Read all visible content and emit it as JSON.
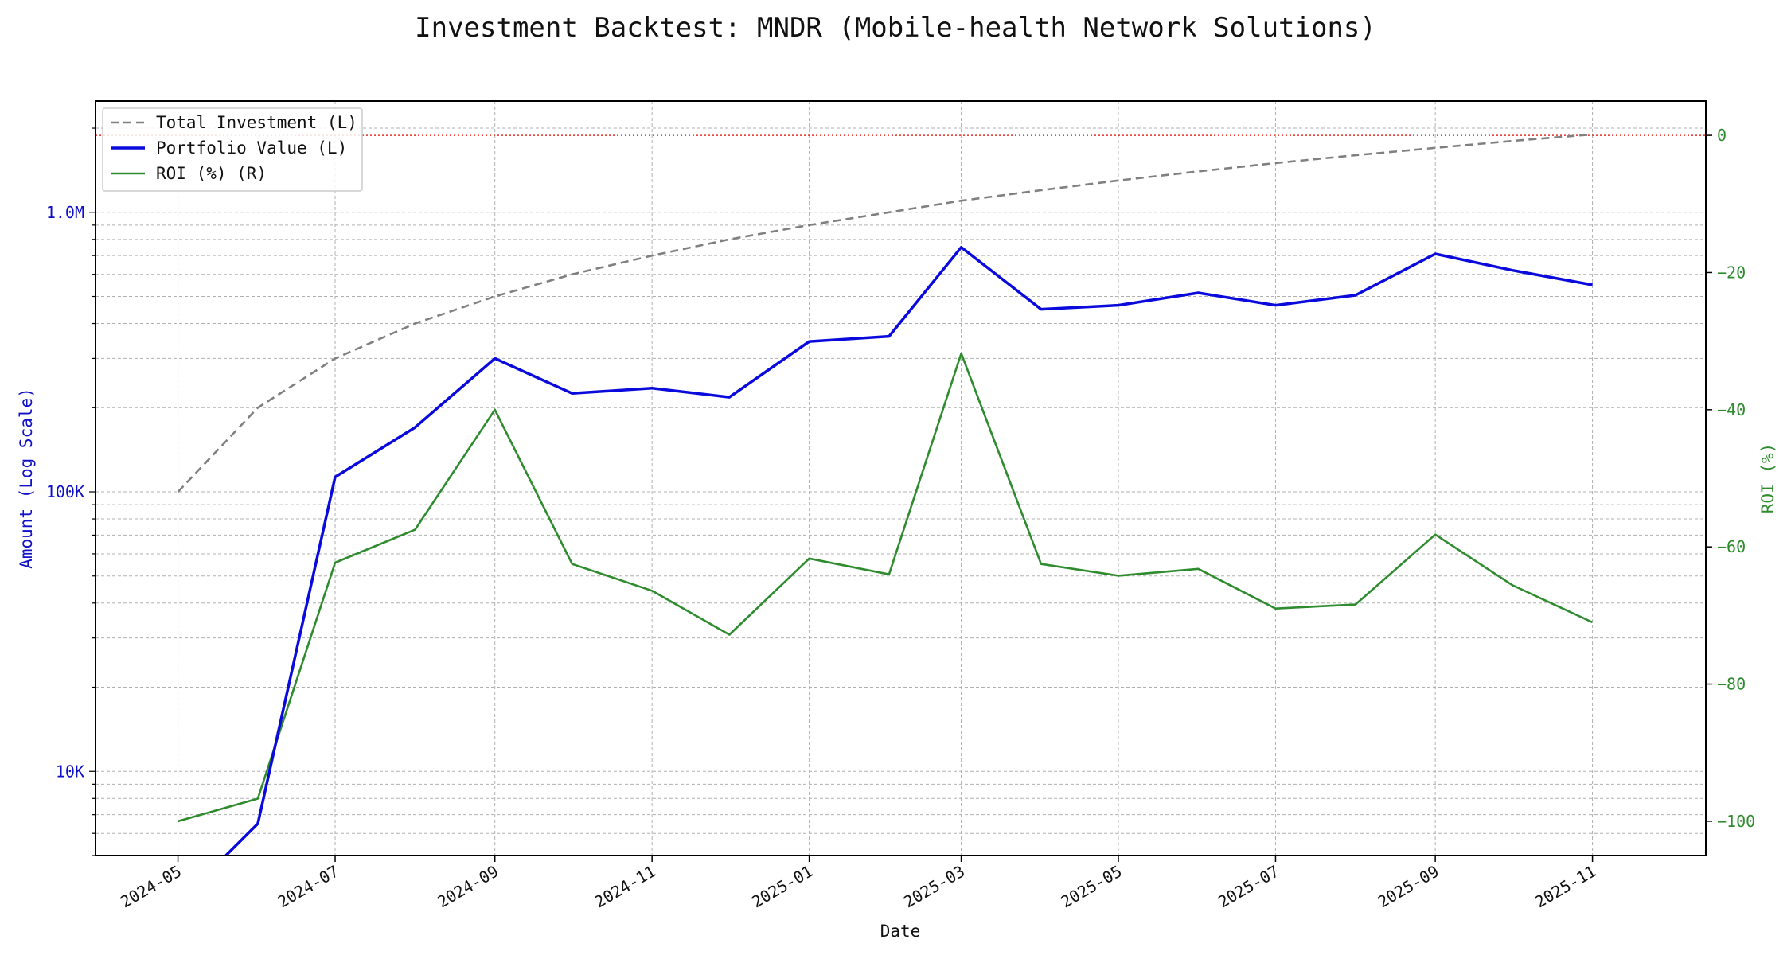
{
  "chart_data": {
    "type": "line",
    "title": "Investment Backtest: MNDR (Mobile-health Network Solutions)",
    "xlabel": "Date",
    "ylabel_left": "Amount (Log Scale)",
    "ylabel_right": "ROI (%)",
    "left_scale": "log",
    "ylim_left": [
      5000,
      2500000
    ],
    "ylim_right": [
      -105,
      5
    ],
    "xlim": [
      "2024-03-30",
      "2025-12-15"
    ],
    "grid": true,
    "legend_position": "top-left",
    "x_tick_labels": [
      "2024-05",
      "2024-07",
      "2024-09",
      "2024-11",
      "2025-01",
      "2025-03",
      "2025-05",
      "2025-07",
      "2025-09",
      "2025-11"
    ],
    "x_tick_dates": [
      "2024-05-01",
      "2024-07-01",
      "2024-09-01",
      "2024-11-01",
      "2025-01-01",
      "2025-03-01",
      "2025-05-01",
      "2025-07-01",
      "2025-09-01",
      "2025-11-01"
    ],
    "left_ticks": [
      {
        "value": 10000,
        "label": "10K"
      },
      {
        "value": 100000,
        "label": "100K"
      },
      {
        "value": 1000000,
        "label": "1.0M"
      }
    ],
    "right_ticks": [
      {
        "value": 0,
        "label": "0"
      },
      {
        "value": -20,
        "label": "−20"
      },
      {
        "value": -40,
        "label": "−40"
      },
      {
        "value": -60,
        "label": "−60"
      },
      {
        "value": -80,
        "label": "−80"
      },
      {
        "value": -100,
        "label": "−100"
      }
    ],
    "reference_line": {
      "axis": "right",
      "value": 0,
      "color": "#e8302a"
    },
    "x": [
      "2024-05-01",
      "2024-06-01",
      "2024-07-01",
      "2024-08-01",
      "2024-09-01",
      "2024-10-01",
      "2024-11-01",
      "2024-12-01",
      "2025-01-01",
      "2025-02-01",
      "2025-03-01",
      "2025-04-01",
      "2025-05-01",
      "2025-06-01",
      "2025-07-01",
      "2025-08-01",
      "2025-09-01",
      "2025-10-01",
      "2025-11-01"
    ],
    "series": [
      {
        "name": "Total Investment (L)",
        "axis": "left",
        "color": "#808080",
        "dash": true,
        "values": [
          100000,
          200000,
          300000,
          400000,
          500000,
          600000,
          700000,
          800000,
          900000,
          1000000,
          1100000,
          1200000,
          1300000,
          1400000,
          1500000,
          1600000,
          1700000,
          1800000,
          1900000
        ]
      },
      {
        "name": "Portfolio Value (L)",
        "axis": "left",
        "color": "#0a0adc",
        "dash": false,
        "values": [
          0,
          6500,
          113000,
          170000,
          300000,
          225000,
          235000,
          218000,
          345000,
          360000,
          750000,
          450000,
          465000,
          515000,
          465000,
          505000,
          710000,
          620000,
          550000
        ]
      },
      {
        "name": "ROI (%) (R)",
        "axis": "right",
        "color": "#2e8b2e",
        "dash": false,
        "values": [
          -100,
          -96.7,
          -62.3,
          -57.5,
          -40,
          -62.5,
          -66.4,
          -72.8,
          -61.7,
          -64,
          -31.8,
          -62.5,
          -64.2,
          -63.2,
          -69,
          -68.4,
          -58.2,
          -65.6,
          -71
        ]
      }
    ]
  }
}
